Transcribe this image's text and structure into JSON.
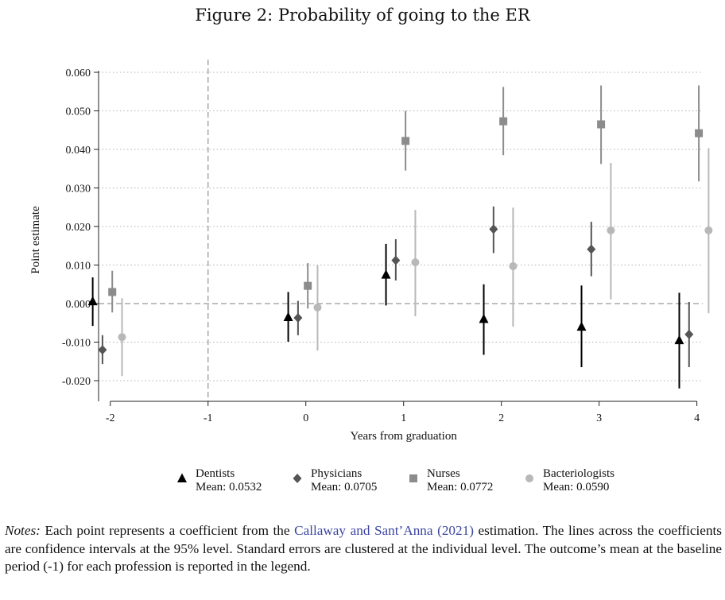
{
  "figure_title": "Figure 2: Probability of going to the ER",
  "colors": {
    "Dentists": "#000000",
    "Physicians": "#555555",
    "Nurses": "#8c8c8c",
    "Bacteriologists": "#b8b8b8",
    "grid": "#b0b0b0",
    "reference": "#999999",
    "citation": "#3b46a0"
  },
  "notes": {
    "label": "Notes:",
    "text_before": " Each point represents a coefficient from the ",
    "citation": "Callaway and Sant’Anna (2021)",
    "text_after": " estimation. The lines across the coefficients are confidence intervals at the 95% level. Standard errors are clustered at the individual level. The outcome’s mean at the baseline period (-1) for each profession is reported in the legend."
  },
  "chart_data": {
    "type": "scatter",
    "title": "Figure 2: Probability of going to the ER",
    "xlabel": "Years from graduation",
    "ylabel": "Point estimate",
    "xlim": [
      -2,
      4
    ],
    "ylim": [
      -0.022,
      0.06
    ],
    "x_ticks": [
      "-2",
      "-1",
      "0",
      "1",
      "2",
      "3",
      "4"
    ],
    "y_ticks": [
      "-0.020",
      "-0.010",
      "0.000",
      "0.010",
      "0.020",
      "0.030",
      "0.040",
      "0.050",
      "0.060"
    ],
    "reference_lines": {
      "x": -1,
      "y": 0
    },
    "grid": true,
    "legend_position": "bottom",
    "series": [
      {
        "name": "Dentists",
        "legend_sub": "Mean: 0.0532",
        "marker": "triangle",
        "x": [
          -2,
          0,
          1,
          2,
          3,
          4
        ],
        "y": [
          0.0006,
          -0.0035,
          0.0075,
          -0.004,
          -0.006,
          -0.0095
        ],
        "lower": [
          -0.0058,
          -0.0099,
          -0.0005,
          -0.0133,
          -0.0165,
          -0.022
        ],
        "upper": [
          0.0068,
          0.003,
          0.0155,
          0.005,
          0.0047,
          0.0028
        ]
      },
      {
        "name": "Physicians",
        "legend_sub": "Mean: 0.0705",
        "marker": "diamond",
        "x": [
          -2,
          0,
          1,
          2,
          3,
          4
        ],
        "y": [
          -0.012,
          -0.0037,
          0.0112,
          0.0193,
          0.0141,
          -0.008
        ],
        "lower": [
          -0.0157,
          -0.0082,
          0.006,
          0.0131,
          0.0071,
          -0.0165
        ],
        "upper": [
          -0.0082,
          0.0007,
          0.0167,
          0.0252,
          0.0212,
          0.0004
        ]
      },
      {
        "name": "Nurses",
        "legend_sub": "Mean: 0.0772",
        "marker": "square",
        "x": [
          -2,
          0,
          1,
          2,
          3,
          4
        ],
        "y": [
          0.003,
          0.0046,
          0.0422,
          0.0473,
          0.0465,
          0.0442
        ],
        "lower": [
          -0.0023,
          -0.0013,
          0.0345,
          0.0385,
          0.0362,
          0.0317
        ],
        "upper": [
          0.0085,
          0.0105,
          0.05,
          0.0562,
          0.0566,
          0.0566
        ]
      },
      {
        "name": "Bacteriologists",
        "legend_sub": "Mean: 0.0590",
        "marker": "circle",
        "x": [
          -2,
          0,
          1,
          2,
          3,
          4
        ],
        "y": [
          -0.0087,
          -0.001,
          0.0107,
          0.0097,
          0.019,
          0.019
        ],
        "lower": [
          -0.0188,
          -0.0122,
          -0.0033,
          -0.006,
          0.0011,
          -0.0025
        ],
        "upper": [
          0.0014,
          0.01,
          0.0243,
          0.0249,
          0.0365,
          0.0403
        ]
      }
    ]
  }
}
